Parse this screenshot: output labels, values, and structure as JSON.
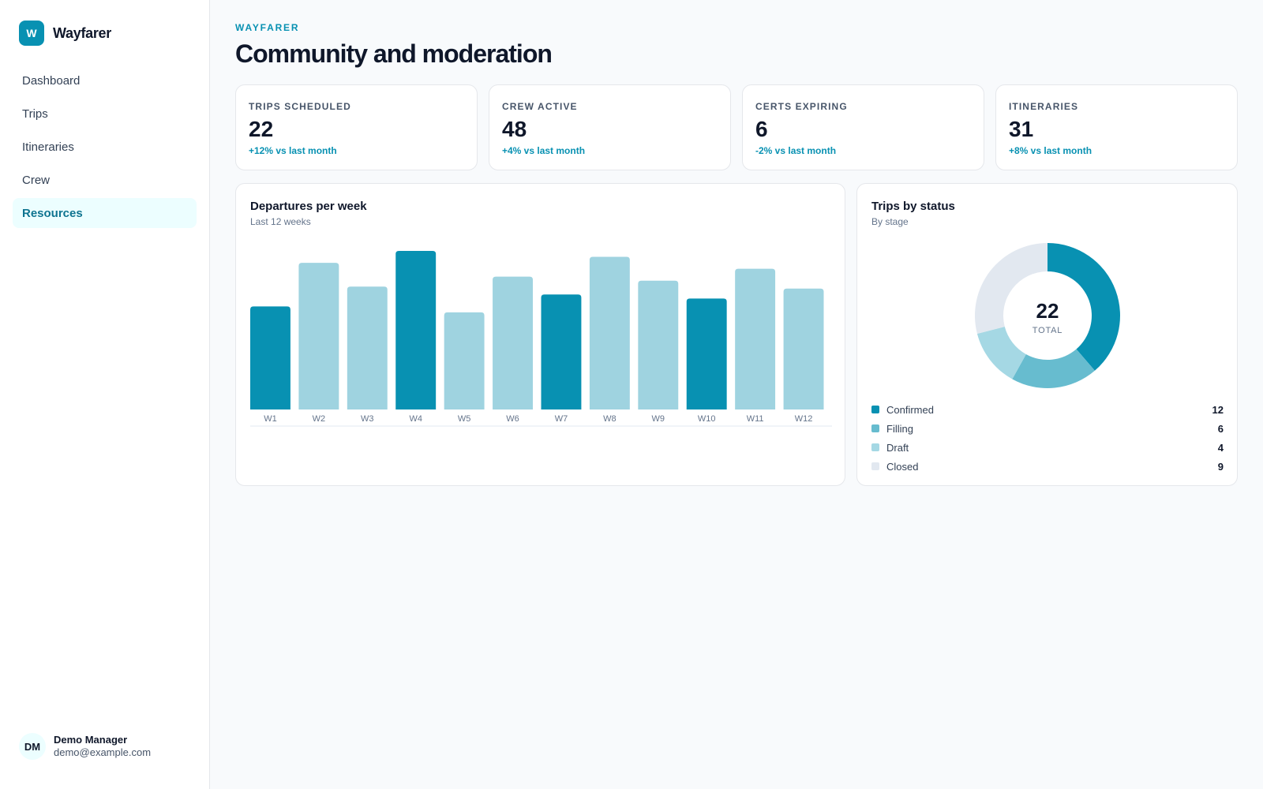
{
  "app": {
    "logo_letter": "W",
    "name": "Wayfarer"
  },
  "nav": [
    {
      "label": "Dashboard",
      "active": false
    },
    {
      "label": "Trips",
      "active": false
    },
    {
      "label": "Itineraries",
      "active": false
    },
    {
      "label": "Crew",
      "active": false
    },
    {
      "label": "Resources",
      "active": true
    }
  ],
  "user": {
    "initials": "DM",
    "name": "Demo Manager",
    "email": "demo@example.com"
  },
  "header": {
    "eyebrow": "WAYFARER",
    "title": "Community and moderation"
  },
  "stats": [
    {
      "label": "TRIPS SCHEDULED",
      "value": "22",
      "delta": "+12% vs last month"
    },
    {
      "label": "CREW ACTIVE",
      "value": "48",
      "delta": "+4% vs last month"
    },
    {
      "label": "CERTS EXPIRING",
      "value": "6",
      "delta": "-2% vs last month"
    },
    {
      "label": "ITINERARIES",
      "value": "31",
      "delta": "+8% vs last month"
    }
  ],
  "colors": {
    "accent": "#0891b2",
    "accent_light": "#9fd3e0",
    "filling": "#67bccf",
    "draft": "#a5d8e4",
    "closed": "#e2e8f0"
  },
  "chart_data": [
    {
      "type": "bar",
      "title": "Departures per week",
      "subtitle": "Last 12 weeks",
      "categories": [
        "W1",
        "W2",
        "W3",
        "W4",
        "W5",
        "W6",
        "W7",
        "W8",
        "W9",
        "W10",
        "W11",
        "W12"
      ],
      "values": [
        52,
        74,
        62,
        80,
        49,
        67,
        58,
        77,
        65,
        56,
        71,
        61
      ],
      "highlighted": [
        true,
        false,
        false,
        true,
        false,
        false,
        true,
        false,
        false,
        true,
        false,
        false
      ],
      "ylim": [
        0,
        82
      ]
    },
    {
      "type": "pie",
      "title": "Trips by status",
      "subtitle": "By stage",
      "center_value": "22",
      "center_label": "TOTAL",
      "slices": [
        {
          "label": "Confirmed",
          "value": 12,
          "color": "#0891b2"
        },
        {
          "label": "Filling",
          "value": 6,
          "color": "#67bccf"
        },
        {
          "label": "Draft",
          "value": 4,
          "color": "#a5d8e4"
        },
        {
          "label": "Closed",
          "value": 9,
          "color": "#e2e8f0"
        }
      ]
    }
  ]
}
